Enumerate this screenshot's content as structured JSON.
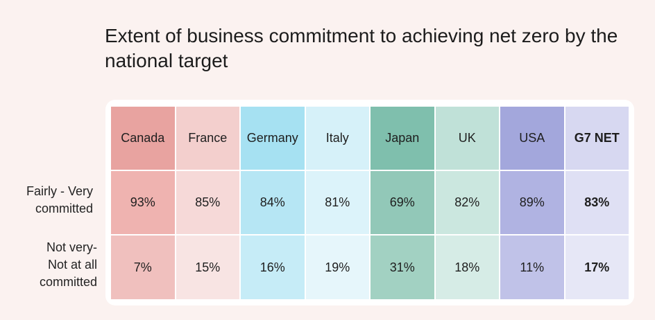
{
  "title": "Extent of business commitment to achieving net zero by the national target",
  "row_labels": {
    "committed": [
      "Fairly - Very",
      "committed"
    ],
    "not_committed": [
      "Not very-",
      "Not at all",
      "committed"
    ]
  },
  "colors": {
    "background": "#fbf2f0",
    "header": [
      "#e8a3a0",
      "#f3cfcd",
      "#a6e1f2",
      "#d6f1f9",
      "#7fbfad",
      "#c0e1d8",
      "#a3a7dc",
      "#d7d8f1"
    ],
    "row1": [
      "#efb3b0",
      "#f6d9d8",
      "#b6e6f4",
      "#dcf3fa",
      "#92c8b8",
      "#cbe7df",
      "#b0b3e2",
      "#dfe0f4"
    ],
    "row2": [
      "#f0c0be",
      "#f8e4e3",
      "#c6ecf7",
      "#e6f6fb",
      "#a2d1c2",
      "#d6ece6",
      "#c0c2e8",
      "#e6e7f6"
    ]
  },
  "chart_data": {
    "type": "table",
    "title": "Extent of business commitment to achieving net zero by the national target",
    "columns": [
      "Canada",
      "France",
      "Germany",
      "Italy",
      "Japan",
      "UK",
      "USA",
      "G7 NET"
    ],
    "rows": [
      {
        "label": "Fairly - Very committed",
        "values": [
          "93%",
          "85%",
          "84%",
          "81%",
          "69%",
          "82%",
          "89%",
          "83%"
        ]
      },
      {
        "label": "Not very- Not at all committed",
        "values": [
          "7%",
          "15%",
          "16%",
          "19%",
          "31%",
          "18%",
          "11%",
          "17%"
        ]
      }
    ]
  }
}
